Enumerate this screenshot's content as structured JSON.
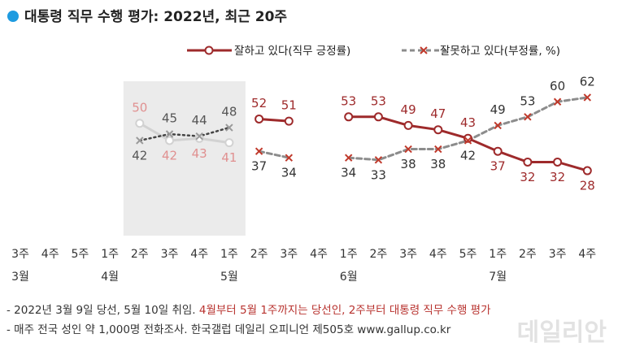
{
  "chart_data": {
    "type": "line",
    "title": "대통령 직무 수행 평가: 2022년, 최근 20주",
    "categories": [
      "3주",
      "4주",
      "5주",
      "1주",
      "2주",
      "3주",
      "4주",
      "1주",
      "2주",
      "3주",
      "4주",
      "1주",
      "2주",
      "3주",
      "4주",
      "5주",
      "1주",
      "2주",
      "3주",
      "4주"
    ],
    "months": [
      {
        "index": 0,
        "label": "3월"
      },
      {
        "index": 3,
        "label": "4월"
      },
      {
        "index": 7,
        "label": "5월"
      },
      {
        "index": 11,
        "label": "6월"
      },
      {
        "index": 16,
        "label": "7월"
      }
    ],
    "series": [
      {
        "name": "잘하고 있다(직무 긍정률)",
        "color": "#9e2a2b",
        "shaded_color": "#d2d2d2",
        "shaded_label_color": "#e09090",
        "values": [
          null,
          null,
          null,
          null,
          50,
          42,
          43,
          41,
          52,
          51,
          null,
          53,
          53,
          49,
          47,
          43,
          37,
          32,
          32,
          28
        ]
      },
      {
        "name": "잘못하고 있다(부정률, %)",
        "color": "#8c8c8c",
        "shaded_color": "#444444",
        "shaded_label_color": "#555555",
        "values": [
          null,
          null,
          null,
          null,
          42,
          45,
          44,
          48,
          37,
          34,
          null,
          34,
          33,
          38,
          38,
          42,
          49,
          53,
          60,
          62
        ]
      }
    ],
    "shaded_range": [
      4,
      7
    ],
    "ylim": [
      25,
      65
    ],
    "notes": [
      {
        "text": "- 2022년 3월 9일 당선, 5월 10일 취임. ",
        "highlight": "4월부터 5월 1주까지는 당선인, 2주부터 대통령 직무 수행 평가"
      },
      {
        "text": "- 매주 전국 성인 약 1,000명 전화조사. 한국갤럽 데일리 오피니언 제505호 www.gallup.co.kr",
        "highlight": ""
      }
    ],
    "watermark": "데일리안"
  }
}
